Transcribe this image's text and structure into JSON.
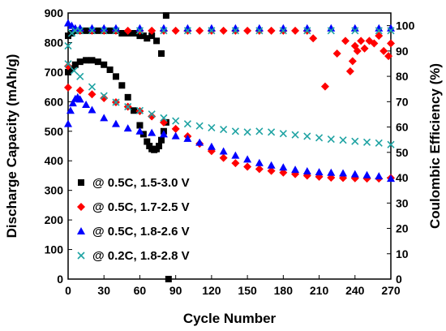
{
  "chart_data": {
    "type": "scatter",
    "xlabel": "Cycle Number",
    "ylabel": "Discharge Capacity (mAh/g)",
    "y2label": "Coulombic Efficiency (%)",
    "xlim": [
      0,
      270
    ],
    "ylim": [
      0,
      900
    ],
    "y2lim": [
      0,
      105
    ],
    "x_ticks": [
      "0",
      "30",
      "60",
      "90",
      "120",
      "150",
      "180",
      "210",
      "240",
      "270"
    ],
    "y_ticks": [
      "0",
      "100",
      "200",
      "300",
      "400",
      "500",
      "600",
      "700",
      "800",
      "900"
    ],
    "y2_ticks": [
      "0",
      "10",
      "20",
      "30",
      "40",
      "50",
      "60",
      "70",
      "80",
      "90",
      "100"
    ],
    "grid": false,
    "legend_position": "lower-left",
    "series": [
      {
        "name": "@ 0.5C, 1.5-3.0 V",
        "color": "#000000",
        "marker": "square",
        "capacity": {
          "x": [
            0,
            3,
            6,
            10,
            15,
            20,
            25,
            30,
            35,
            40,
            45,
            50,
            55,
            60,
            63,
            66,
            68,
            70,
            72,
            74,
            76,
            78,
            80,
            82
          ],
          "y": [
            700,
            712,
            725,
            735,
            740,
            740,
            735,
            725,
            708,
            685,
            655,
            615,
            570,
            520,
            490,
            465,
            450,
            440,
            437,
            440,
            450,
            470,
            500,
            530
          ]
        },
        "efficiency": {
          "x": [
            0,
            3,
            6,
            10,
            15,
            20,
            25,
            30,
            35,
            40,
            45,
            50,
            55,
            60,
            63,
            66,
            70,
            74,
            78,
            82,
            84
          ],
          "y": [
            96,
            97,
            98,
            98,
            98,
            98,
            98,
            98,
            98,
            98,
            97,
            97,
            97,
            96,
            96,
            95,
            96,
            94,
            89,
            104,
            0
          ]
        }
      },
      {
        "name": "@ 0.5C, 1.7-2.5 V",
        "color": "#ff0000",
        "marker": "diamond",
        "capacity": {
          "x": [
            0,
            10,
            20,
            30,
            40,
            50,
            60,
            70,
            80,
            90,
            100,
            110,
            120,
            130,
            140,
            150,
            160,
            170,
            180,
            190,
            200,
            210,
            220,
            230,
            240,
            250,
            260,
            270
          ],
          "y": [
            648,
            638,
            625,
            612,
            598,
            583,
            568,
            550,
            530,
            508,
            483,
            458,
            433,
            410,
            392,
            380,
            372,
            366,
            360,
            355,
            350,
            346,
            343,
            342,
            341,
            340,
            340,
            342
          ]
        },
        "efficiency": {
          "x": [
            0,
            10,
            20,
            30,
            40,
            50,
            60,
            70,
            80,
            90,
            100,
            110,
            120,
            130,
            140,
            150,
            160,
            170,
            180,
            190,
            200,
            205,
            215,
            225,
            232,
            236,
            238,
            240,
            242,
            245,
            248,
            252,
            256,
            260,
            264,
            268,
            270
          ],
          "y": [
            84,
            98,
            98,
            98,
            98,
            98,
            98,
            98,
            98,
            98,
            98,
            98,
            98,
            98,
            98,
            98,
            98,
            98,
            98,
            98,
            98,
            95,
            76,
            89,
            94,
            82,
            86,
            92,
            90,
            94,
            91,
            94,
            93,
            96,
            90,
            88,
            93
          ]
        }
      },
      {
        "name": "@ 0.5C, 1.8-2.6 V",
        "color": "#0000ff",
        "marker": "triangle",
        "capacity": {
          "x": [
            0,
            2,
            4,
            6,
            8,
            10,
            15,
            20,
            30,
            40,
            50,
            60,
            70,
            80,
            90,
            100,
            110,
            120,
            130,
            140,
            150,
            160,
            170,
            180,
            190,
            200,
            210,
            220,
            230,
            240,
            250,
            260,
            270
          ],
          "y": [
            525,
            570,
            595,
            610,
            615,
            608,
            590,
            572,
            545,
            525,
            510,
            500,
            495,
            490,
            484,
            475,
            462,
            448,
            432,
            418,
            405,
            393,
            385,
            378,
            370,
            365,
            362,
            360,
            358,
            355,
            352,
            348,
            340
          ]
        },
        "efficiency": {
          "x": [
            0,
            3,
            6,
            10,
            20,
            30,
            40,
            60,
            80,
            100,
            120,
            140,
            160,
            180,
            200,
            220,
            240,
            260,
            270
          ],
          "y": [
            101,
            100,
            99,
            99,
            99,
            99,
            99,
            99,
            99,
            99,
            99,
            99,
            99,
            99,
            99,
            99,
            99,
            99,
            99
          ]
        }
      },
      {
        "name": "@ 0.2C, 1.8-2.8 V",
        "color": "#1fa3a3",
        "marker": "x",
        "capacity": {
          "x": [
            0,
            5,
            10,
            20,
            30,
            40,
            50,
            60,
            70,
            80,
            90,
            100,
            110,
            120,
            130,
            140,
            150,
            160,
            170,
            180,
            190,
            200,
            210,
            220,
            230,
            240,
            250,
            260,
            270
          ],
          "y": [
            728,
            705,
            685,
            650,
            620,
            598,
            583,
            570,
            558,
            545,
            535,
            525,
            518,
            512,
            506,
            500,
            497,
            500,
            497,
            492,
            488,
            483,
            478,
            473,
            470,
            466,
            463,
            460,
            455
          ]
        },
        "efficiency": {
          "x": [
            0,
            3,
            6,
            10,
            20,
            30,
            40,
            60,
            80,
            100,
            120,
            140,
            160,
            180,
            200,
            220,
            240,
            260,
            270
          ],
          "y": [
            92,
            97,
            98,
            98,
            98,
            98,
            98,
            98,
            98,
            98,
            98,
            98,
            98,
            98,
            98,
            98,
            98,
            98,
            98
          ]
        }
      }
    ]
  }
}
